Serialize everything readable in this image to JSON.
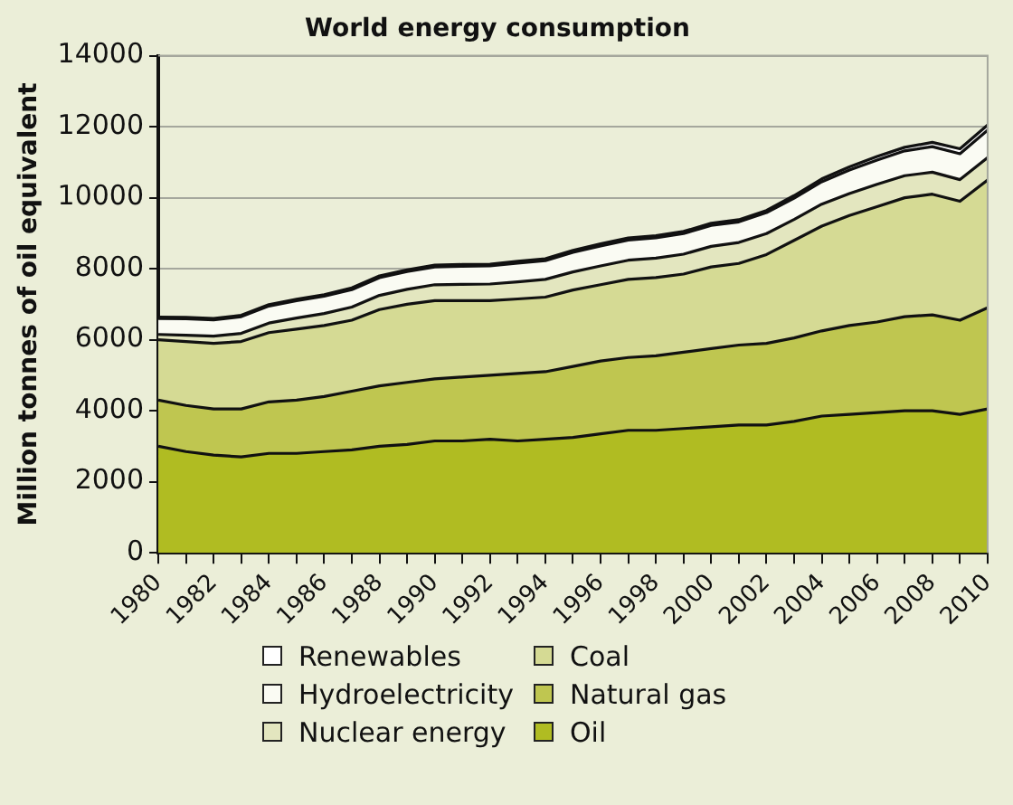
{
  "chart_data": {
    "type": "area",
    "title": "World energy consumption",
    "ylabel": "Million tonnes of oil equivalent",
    "stacked": true,
    "grid": "y",
    "legend": "bottom",
    "marker": "none",
    "x": [
      1980,
      1981,
      1982,
      1983,
      1984,
      1985,
      1986,
      1987,
      1988,
      1989,
      1990,
      1991,
      1992,
      1993,
      1994,
      1995,
      1996,
      1997,
      1998,
      1999,
      2000,
      2001,
      2002,
      2003,
      2004,
      2005,
      2006,
      2007,
      2008,
      2009,
      2010
    ],
    "xlim": [
      1980,
      2010
    ],
    "xticks": [
      1980,
      {
        "value": 1981,
        "label": null
      },
      1982,
      {
        "value": 1983,
        "label": null
      },
      1984,
      {
        "value": 1985,
        "label": null
      },
      1986,
      {
        "value": 1987,
        "label": null
      },
      1988,
      {
        "value": 1989,
        "label": null
      },
      1990,
      {
        "value": 1991,
        "label": null
      },
      1992,
      {
        "value": 1993,
        "label": null
      },
      1994,
      {
        "value": 1995,
        "label": null
      },
      1996,
      {
        "value": 1997,
        "label": null
      },
      1998,
      {
        "value": 1999,
        "label": null
      },
      2000,
      {
        "value": 2001,
        "label": null
      },
      2002,
      {
        "value": 2003,
        "label": null
      },
      2004,
      {
        "value": 2005,
        "label": null
      },
      2006,
      {
        "value": 2007,
        "label": null
      },
      2008,
      {
        "value": 2009,
        "label": null
      },
      2010
    ],
    "ylim": [
      0,
      14000
    ],
    "yticks": [
      0,
      2000,
      4000,
      6000,
      8000,
      10000,
      12000,
      14000
    ],
    "series": [
      {
        "name": "Oil",
        "color": "#b0bc22",
        "values": [
          3000,
          2850,
          2750,
          2700,
          2800,
          2800,
          2850,
          2900,
          3000,
          3050,
          3150,
          3150,
          3200,
          3150,
          3200,
          3250,
          3350,
          3450,
          3450,
          3500,
          3550,
          3600,
          3600,
          3700,
          3850,
          3900,
          3950,
          4000,
          4000,
          3900,
          4050
        ]
      },
      {
        "name": "Natural gas",
        "color": "#bfc650",
        "values": [
          1300,
          1300,
          1300,
          1350,
          1450,
          1500,
          1550,
          1650,
          1700,
          1750,
          1750,
          1800,
          1800,
          1900,
          1900,
          2000,
          2050,
          2050,
          2100,
          2150,
          2200,
          2250,
          2300,
          2350,
          2400,
          2500,
          2550,
          2650,
          2700,
          2650,
          2850
        ]
      },
      {
        "name": "Coal",
        "color": "#d5da94",
        "values": [
          1700,
          1800,
          1850,
          1900,
          1950,
          2000,
          2000,
          2000,
          2150,
          2200,
          2200,
          2150,
          2100,
          2100,
          2100,
          2150,
          2150,
          2200,
          2200,
          2200,
          2300,
          2300,
          2500,
          2750,
          2950,
          3100,
          3250,
          3350,
          3400,
          3350,
          3600
        ]
      },
      {
        "name": "Nuclear energy",
        "color": "#e3e6bf",
        "values": [
          150,
          180,
          200,
          230,
          270,
          310,
          340,
          370,
          400,
          420,
          450,
          460,
          470,
          480,
          500,
          510,
          530,
          540,
          550,
          560,
          580,
          590,
          590,
          590,
          620,
          620,
          630,
          620,
          620,
          610,
          630
        ]
      },
      {
        "name": "Hydroelectricity",
        "color": "#fafbf3",
        "values": [
          450,
          460,
          460,
          470,
          480,
          490,
          490,
          490,
          500,
          500,
          500,
          510,
          510,
          530,
          530,
          550,
          560,
          570,
          570,
          580,
          590,
          580,
          590,
          600,
          630,
          660,
          680,
          700,
          720,
          730,
          770
        ]
      },
      {
        "name": "Renewables",
        "color": "#ffffff",
        "values": [
          40,
          40,
          40,
          40,
          40,
          40,
          40,
          50,
          50,
          50,
          50,
          50,
          50,
          50,
          50,
          60,
          60,
          60,
          60,
          60,
          60,
          60,
          60,
          70,
          80,
          90,
          100,
          100,
          120,
          140,
          150
        ]
      }
    ]
  }
}
